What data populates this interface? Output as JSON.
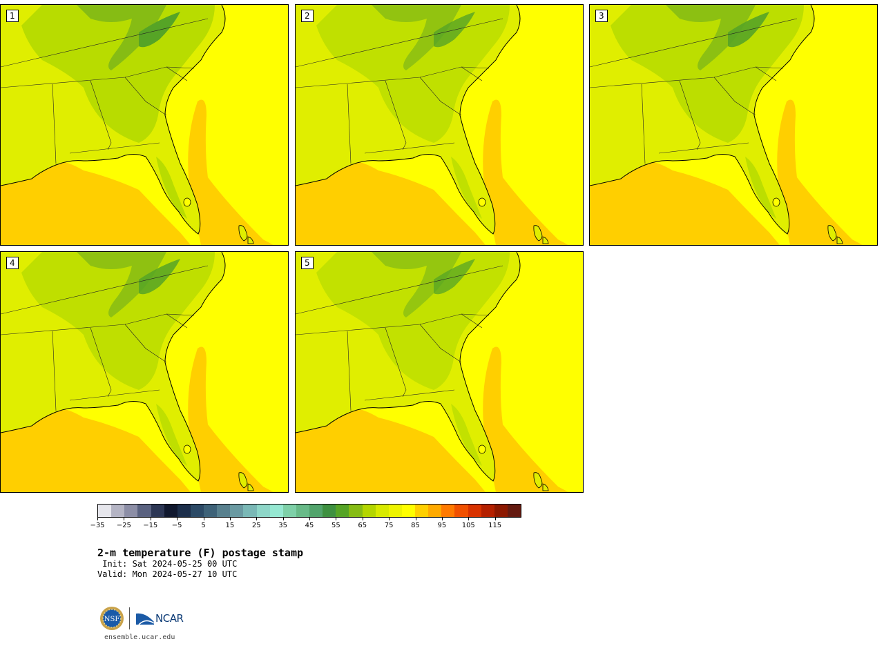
{
  "panels": [
    {
      "label": "1"
    },
    {
      "label": "2"
    },
    {
      "label": "3"
    },
    {
      "label": "4"
    },
    {
      "label": "5"
    }
  ],
  "colorbar": {
    "ticks": [
      "−35",
      "−25",
      "−15",
      "−5",
      "5",
      "15",
      "25",
      "35",
      "45",
      "55",
      "65",
      "75",
      "85",
      "95",
      "105",
      "115"
    ],
    "colors": [
      "#e6e6ec",
      "#b4b4c4",
      "#8c8ea6",
      "#5a6280",
      "#2c3654",
      "#10182e",
      "#1c2e4a",
      "#2c4a66",
      "#3e6278",
      "#58808e",
      "#6a9aa2",
      "#7ab8b6",
      "#8ed6c8",
      "#96e8d2",
      "#7ed0a8",
      "#68ba88",
      "#52a46c",
      "#3e9040",
      "#56a426",
      "#86bc14",
      "#b4d600",
      "#d8ea00",
      "#eef400",
      "#ffff00",
      "#ffd000",
      "#ffaa00",
      "#ff7a00",
      "#f05000",
      "#d83200",
      "#b42000",
      "#8c1800",
      "#641a10"
    ],
    "min": -35,
    "max": 125
  },
  "title": "2-m temperature (F) postage stamp",
  "init": " Init: Sat 2024-05-25 00 UTC",
  "valid": "Valid: Mon 2024-05-27 10 UTC",
  "logos": {
    "nsf": "NSF",
    "ncar": "NCAR"
  },
  "site": "ensemble.ucar.edu"
}
